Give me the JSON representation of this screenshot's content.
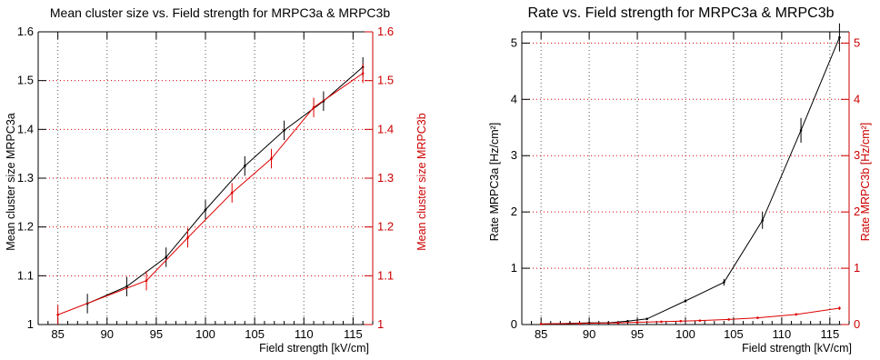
{
  "chart_data": [
    {
      "type": "line",
      "title": "Mean cluster size vs. Field strength for MRPC3a & MRPC3b",
      "xlabel": "Field strength [kV/cm]",
      "ylabel": "Mean cluster size MRPC3a",
      "ylabel_right": "Mean cluster size MRPC3b",
      "xlim": [
        83,
        117
      ],
      "ylim": [
        1.0,
        1.6
      ],
      "ylim_right": [
        1.0,
        1.6
      ],
      "xticks": [
        85,
        90,
        95,
        100,
        105,
        110,
        115
      ],
      "yticks": [
        1,
        1.1,
        1.2,
        1.3,
        1.4,
        1.5,
        1.6
      ],
      "yticks_right": [
        1,
        1.1,
        1.2,
        1.3,
        1.4,
        1.5,
        1.6
      ],
      "grid": true,
      "colors": {
        "a": "#000000",
        "b": "#dd0000",
        "grid_v": "#555555",
        "grid_h": "#dd0000"
      },
      "series": [
        {
          "name": "MRPC3a",
          "color": "#000000",
          "axis": "left",
          "x": [
            88,
            92,
            96,
            100,
            104,
            108,
            112,
            116
          ],
          "y": [
            1.043,
            1.078,
            1.138,
            1.235,
            1.325,
            1.398,
            1.458,
            1.528
          ],
          "err": [
            0.02,
            0.02,
            0.02,
            0.02,
            0.02,
            0.02,
            0.02,
            0.02
          ]
        },
        {
          "name": "MRPC3b",
          "color": "#dd0000",
          "axis": "right",
          "x": [
            85,
            94,
            98.2,
            102.7,
            106.7,
            111,
            116
          ],
          "y": [
            1.02,
            1.09,
            1.178,
            1.27,
            1.34,
            1.445,
            1.515
          ],
          "err": [
            0.02,
            0.02,
            0.02,
            0.02,
            0.02,
            0.02,
            0.02
          ]
        }
      ]
    },
    {
      "type": "line",
      "title": "Rate vs. Field strength for MRPC3a & MRPC3b",
      "xlabel": "Field strength [kV/cm]",
      "ylabel": "Rate MRPC3a [Hz/cm²]",
      "ylabel_right": "Rate MRPC3b [Hz/cm²]",
      "xlim": [
        83,
        117
      ],
      "ylim": [
        0,
        5.2
      ],
      "ylim_right": [
        0,
        5.2
      ],
      "xticks": [
        85,
        90,
        95,
        100,
        105,
        110,
        115
      ],
      "yticks": [
        0,
        1,
        2,
        3,
        4,
        5
      ],
      "yticks_right": [
        0,
        1,
        2,
        3,
        4,
        5
      ],
      "grid": true,
      "colors": {
        "a": "#000000",
        "b": "#dd0000",
        "grid_v": "#555555",
        "grid_h": "#dd0000"
      },
      "series": [
        {
          "name": "MRPC3a",
          "color": "#000000",
          "axis": "left",
          "x": [
            85,
            88,
            90,
            92,
            94,
            96,
            100,
            104,
            108,
            112,
            116
          ],
          "y": [
            0.01,
            0.02,
            0.03,
            0.03,
            0.06,
            0.1,
            0.42,
            0.75,
            1.85,
            3.45,
            5.1
          ],
          "err": [
            0,
            0,
            0,
            0,
            0,
            0.02,
            0.03,
            0.06,
            0.15,
            0.22,
            0.25
          ]
        },
        {
          "name": "MRPC3b",
          "color": "#dd0000",
          "axis": "right",
          "x": [
            85,
            89,
            93,
            95,
            97.5,
            99.5,
            101.5,
            104.5,
            107.5,
            111.5,
            116
          ],
          "y": [
            0.01,
            0.02,
            0.03,
            0.04,
            0.05,
            0.06,
            0.07,
            0.09,
            0.12,
            0.18,
            0.29
          ],
          "err": [
            0,
            0,
            0,
            0,
            0,
            0,
            0,
            0,
            0.01,
            0.02,
            0.03
          ]
        }
      ]
    }
  ]
}
